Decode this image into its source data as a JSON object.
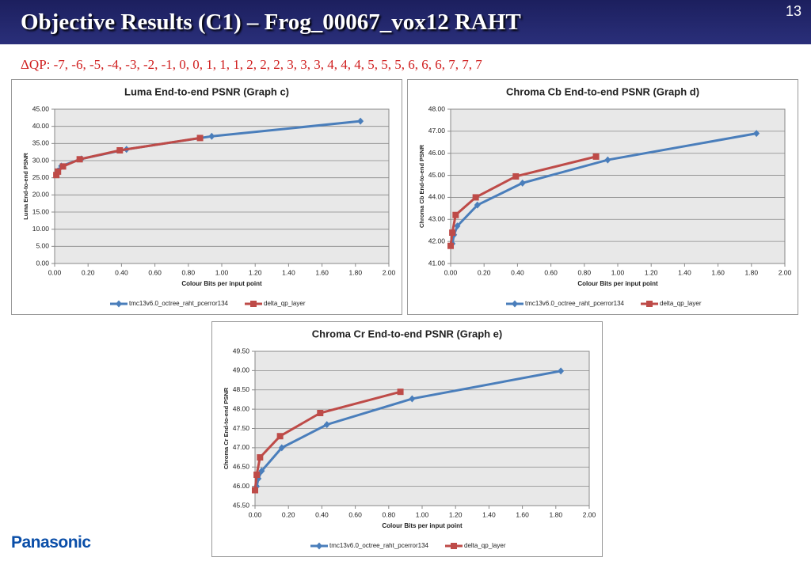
{
  "header": {
    "title": "Objective Results (C1) – Frog_00067_vox12 RAHT",
    "page_number": "13"
  },
  "qp_text": "ΔQP: -7, -6, -5, -4, -3, -2, -1, 0, 0, 1, 1, 1, 2, 2, 2, 3, 3, 3, 4, 4, 4, 5, 5, 5, 6, 6, 6, 7, 7, 7",
  "logo": "Panasonic",
  "chart_data": [
    {
      "type": "line",
      "title": "Luma End-to-end PSNR (Graph c)",
      "x_label": "Colour  Bits per input point",
      "y_label": "Luma End-to-end PSNR",
      "grid": true,
      "xlim": [
        0,
        2
      ],
      "xticks": [
        {
          "value": 0,
          "label": "0.00"
        },
        {
          "value": 0.2,
          "label": "0.20"
        },
        {
          "value": 0.4,
          "label": "0.40"
        },
        {
          "value": 0.6,
          "label": "0.60"
        },
        {
          "value": 0.8,
          "label": "0.80"
        },
        {
          "value": 1,
          "label": "1.00"
        },
        {
          "value": 1.2,
          "label": "1.20"
        },
        {
          "value": 1.4,
          "label": "1.40"
        },
        {
          "value": 1.6,
          "label": "1.60"
        },
        {
          "value": 1.8,
          "label": "1.80"
        },
        {
          "value": 2,
          "label": "2.00"
        }
      ],
      "ylim": [
        0,
        45
      ],
      "yticks": [
        {
          "value": 0,
          "label": "0.00"
        },
        {
          "value": 5,
          "label": "5.00"
        },
        {
          "value": 10,
          "label": "10.00"
        },
        {
          "value": 15,
          "label": "15.00"
        },
        {
          "value": 20,
          "label": "20.00"
        },
        {
          "value": 25,
          "label": "25.00"
        },
        {
          "value": 30,
          "label": "30.00"
        },
        {
          "value": 35,
          "label": "35.00"
        },
        {
          "value": 40,
          "label": "40.00"
        },
        {
          "value": 45,
          "label": "45.00"
        }
      ],
      "series": [
        {
          "name": "tmc13v6.0_octree_raht_pcerror134",
          "color": "#4a7ebb",
          "marker": "diamond",
          "x": [
            0.01,
            0.02,
            0.04,
            0.16,
            0.43,
            0.94,
            1.83
          ],
          "values": [
            25.9,
            27.0,
            28.4,
            30.5,
            33.3,
            37.1,
            41.5
          ]
        },
        {
          "name": "delta_qp_layer",
          "color": "#be4b48",
          "marker": "square",
          "x": [
            0.01,
            0.02,
            0.05,
            0.15,
            0.39,
            0.87
          ],
          "values": [
            25.8,
            26.8,
            28.3,
            30.4,
            33.0,
            36.6
          ]
        }
      ]
    },
    {
      "type": "line",
      "title": "Chroma Cb End-to-end PSNR (Graph d)",
      "x_label": "Colour  Bits per input point",
      "y_label": "Chroma Cb End-to-end PSNR",
      "grid": true,
      "xlim": [
        0,
        2
      ],
      "xticks": [
        {
          "value": 0,
          "label": "0.00"
        },
        {
          "value": 0.2,
          "label": "0.20"
        },
        {
          "value": 0.4,
          "label": "0.40"
        },
        {
          "value": 0.6,
          "label": "0.60"
        },
        {
          "value": 0.8,
          "label": "0.80"
        },
        {
          "value": 1,
          "label": "1.00"
        },
        {
          "value": 1.2,
          "label": "1.20"
        },
        {
          "value": 1.4,
          "label": "1.40"
        },
        {
          "value": 1.6,
          "label": "1.60"
        },
        {
          "value": 1.8,
          "label": "1.80"
        },
        {
          "value": 2,
          "label": "2.00"
        }
      ],
      "ylim": [
        41,
        48
      ],
      "yticks": [
        {
          "value": 41,
          "label": "41.00"
        },
        {
          "value": 42,
          "label": "42.00"
        },
        {
          "value": 43,
          "label": "43.00"
        },
        {
          "value": 44,
          "label": "44.00"
        },
        {
          "value": 45,
          "label": "45.00"
        },
        {
          "value": 46,
          "label": "46.00"
        },
        {
          "value": 47,
          "label": "47.00"
        },
        {
          "value": 48,
          "label": "48.00"
        }
      ],
      "series": [
        {
          "name": "tmc13v6.0_octree_raht_pcerror134",
          "color": "#4a7ebb",
          "marker": "diamond",
          "x": [
            0.01,
            0.02,
            0.04,
            0.16,
            0.43,
            0.94,
            1.83
          ],
          "values": [
            41.9,
            42.3,
            42.7,
            43.65,
            44.65,
            45.7,
            46.9
          ]
        },
        {
          "name": "delta_qp_layer",
          "color": "#be4b48",
          "marker": "square",
          "x": [
            0.0,
            0.01,
            0.03,
            0.15,
            0.39,
            0.87
          ],
          "values": [
            41.8,
            42.4,
            43.2,
            44.0,
            44.95,
            45.85
          ]
        }
      ]
    },
    {
      "type": "line",
      "title": "Chroma Cr End-to-end PSNR (Graph e)",
      "x_label": "Colour  Bits per input point",
      "y_label": "Chroma Cr End-to-end PSNR",
      "grid": true,
      "xlim": [
        0,
        2
      ],
      "xticks": [
        {
          "value": 0,
          "label": "0.00"
        },
        {
          "value": 0.2,
          "label": "0.20"
        },
        {
          "value": 0.4,
          "label": "0.40"
        },
        {
          "value": 0.6,
          "label": "0.60"
        },
        {
          "value": 0.8,
          "label": "0.80"
        },
        {
          "value": 1,
          "label": "1.00"
        },
        {
          "value": 1.2,
          "label": "1.20"
        },
        {
          "value": 1.4,
          "label": "1.40"
        },
        {
          "value": 1.6,
          "label": "1.60"
        },
        {
          "value": 1.8,
          "label": "1.80"
        },
        {
          "value": 2,
          "label": "2.00"
        }
      ],
      "ylim": [
        45.5,
        49.5
      ],
      "yticks": [
        {
          "value": 45.5,
          "label": "45.50"
        },
        {
          "value": 46,
          "label": "46.00"
        },
        {
          "value": 46.5,
          "label": "46.50"
        },
        {
          "value": 47,
          "label": "47.00"
        },
        {
          "value": 47.5,
          "label": "47.50"
        },
        {
          "value": 48,
          "label": "48.00"
        },
        {
          "value": 48.5,
          "label": "48.50"
        },
        {
          "value": 49,
          "label": "49.00"
        },
        {
          "value": 49.5,
          "label": "49.50"
        }
      ],
      "series": [
        {
          "name": "tmc13v6.0_octree_raht_pcerror134",
          "color": "#4a7ebb",
          "marker": "diamond",
          "x": [
            0.01,
            0.02,
            0.04,
            0.16,
            0.43,
            0.94,
            1.83
          ],
          "values": [
            46.0,
            46.2,
            46.4,
            47.0,
            47.6,
            48.27,
            48.99
          ]
        },
        {
          "name": "delta_qp_layer",
          "color": "#be4b48",
          "marker": "square",
          "x": [
            0.0,
            0.01,
            0.03,
            0.15,
            0.39,
            0.87
          ],
          "values": [
            45.9,
            46.3,
            46.75,
            47.3,
            47.9,
            48.45
          ]
        }
      ]
    }
  ]
}
